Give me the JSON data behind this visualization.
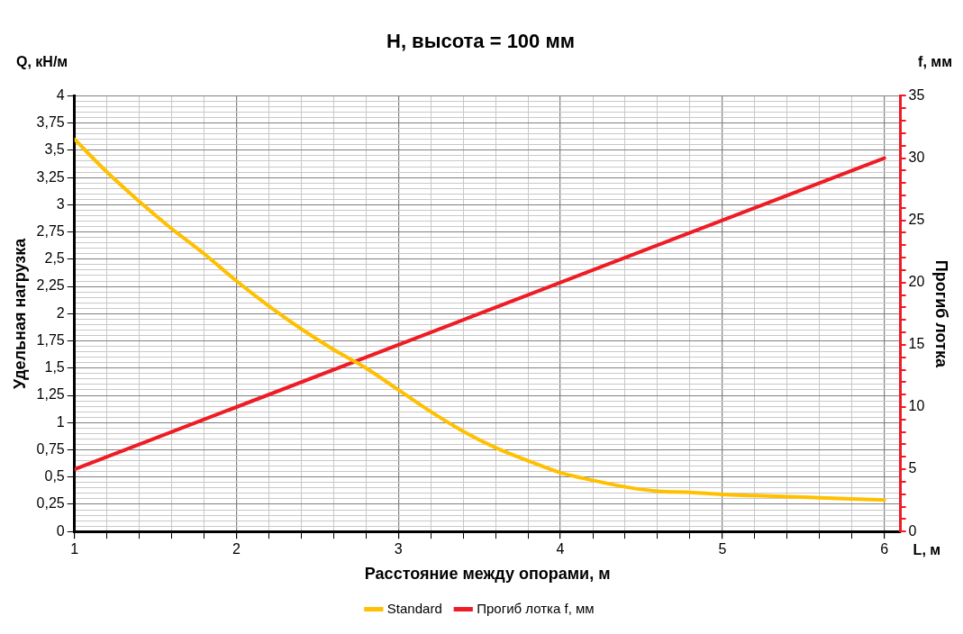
{
  "chart_data": {
    "type": "line",
    "title": "H, высота = 100 мм",
    "xlabel": "Расстояние между опорами, м",
    "ylabel": "Удельная нагрузка",
    "y2label": "Прогиб лотка",
    "annotations": [
      "Q, кН/м",
      "f, мм",
      "L, м"
    ],
    "x": [
      1,
      1.2,
      1.4,
      1.6,
      1.8,
      2,
      2.2,
      2.4,
      2.6,
      2.8,
      3,
      3.2,
      3.4,
      3.6,
      3.8,
      4,
      4.2,
      4.4,
      4.6,
      4.8,
      5,
      5.2,
      5.4,
      5.6,
      5.8,
      6
    ],
    "series": [
      {
        "name": "Standard",
        "color": "#ffc000",
        "values": [
          3.6,
          3.3,
          3.03,
          2.78,
          2.55,
          2.3,
          2.07,
          1.86,
          1.67,
          1.5,
          1.3,
          1.1,
          0.92,
          0.77,
          0.65,
          0.54,
          0.47,
          0.41,
          0.37,
          0.36,
          0.34,
          0.33,
          0.32,
          0.31,
          0.3,
          0.29
        ]
      },
      {
        "name": "Прогиб лотка f, мм",
        "color": "#ee1c25",
        "axis": "y2",
        "x": [
          1,
          6
        ],
        "values": [
          5,
          30
        ]
      }
    ],
    "xlim": [
      1,
      6.1
    ],
    "xticks": [
      1,
      {
        "value": 1.2,
        "label": null
      },
      {
        "value": 1.4,
        "label": null
      },
      {
        "value": 1.6,
        "label": null
      },
      {
        "value": 1.8,
        "label": null
      },
      2,
      {
        "value": 2.2,
        "label": null
      },
      {
        "value": 2.4,
        "label": null
      },
      {
        "value": 2.6,
        "label": null
      },
      {
        "value": 2.8,
        "label": null
      },
      3,
      {
        "value": 3.2,
        "label": null
      },
      {
        "value": 3.4,
        "label": null
      },
      {
        "value": 3.6,
        "label": null
      },
      {
        "value": 3.8,
        "label": null
      },
      4,
      {
        "value": 4.2,
        "label": null
      },
      {
        "value": 4.4,
        "label": null
      },
      {
        "value": 4.6,
        "label": null
      },
      {
        "value": 4.8,
        "label": null
      },
      5,
      {
        "value": 5.2,
        "label": null
      },
      {
        "value": 5.4,
        "label": null
      },
      {
        "value": 5.6,
        "label": null
      },
      {
        "value": 5.8,
        "label": null
      },
      6
    ],
    "ylim": [
      0,
      4
    ],
    "yticks": [
      0,
      {
        "value": 0.05,
        "label": null
      },
      {
        "value": 0.1,
        "label": null
      },
      {
        "value": 0.15,
        "label": null
      },
      {
        "value": 0.2,
        "label": null
      },
      {
        "value": 0.25,
        "label": "0,25"
      },
      {
        "value": 0.3,
        "label": null
      },
      {
        "value": 0.35,
        "label": null
      },
      {
        "value": 0.4,
        "label": null
      },
      {
        "value": 0.45,
        "label": null
      },
      {
        "value": 0.5,
        "label": "0,5"
      },
      {
        "value": 0.55,
        "label": null
      },
      {
        "value": 0.6,
        "label": null
      },
      {
        "value": 0.65,
        "label": null
      },
      {
        "value": 0.7,
        "label": null
      },
      {
        "value": 0.75,
        "label": "0,75"
      },
      {
        "value": 0.8,
        "label": null
      },
      {
        "value": 0.85,
        "label": null
      },
      {
        "value": 0.9,
        "label": null
      },
      {
        "value": 0.95,
        "label": null
      },
      1,
      {
        "value": 1.05,
        "label": null
      },
      {
        "value": 1.1,
        "label": null
      },
      {
        "value": 1.15,
        "label": null
      },
      {
        "value": 1.2,
        "label": null
      },
      {
        "value": 1.25,
        "label": "1,25"
      },
      {
        "value": 1.3,
        "label": null
      },
      {
        "value": 1.35,
        "label": null
      },
      {
        "value": 1.4,
        "label": null
      },
      {
        "value": 1.45,
        "label": null
      },
      {
        "value": 1.5,
        "label": "1,5"
      },
      {
        "value": 1.55,
        "label": null
      },
      {
        "value": 1.6,
        "label": null
      },
      {
        "value": 1.65,
        "label": null
      },
      {
        "value": 1.7,
        "label": null
      },
      {
        "value": 1.75,
        "label": "1,75"
      },
      {
        "value": 1.8,
        "label": null
      },
      {
        "value": 1.85,
        "label": null
      },
      {
        "value": 1.9,
        "label": null
      },
      {
        "value": 1.95,
        "label": null
      },
      2,
      {
        "value": 2.05,
        "label": null
      },
      {
        "value": 2.1,
        "label": null
      },
      {
        "value": 2.15,
        "label": null
      },
      {
        "value": 2.2,
        "label": null
      },
      {
        "value": 2.25,
        "label": "2,25"
      },
      {
        "value": 2.3,
        "label": null
      },
      {
        "value": 2.35,
        "label": null
      },
      {
        "value": 2.4,
        "label": null
      },
      {
        "value": 2.45,
        "label": null
      },
      {
        "value": 2.5,
        "label": "2,5"
      },
      {
        "value": 2.55,
        "label": null
      },
      {
        "value": 2.6,
        "label": null
      },
      {
        "value": 2.65,
        "label": null
      },
      {
        "value": 2.7,
        "label": null
      },
      {
        "value": 2.75,
        "label": "2,75"
      },
      {
        "value": 2.8,
        "label": null
      },
      {
        "value": 2.85,
        "label": null
      },
      {
        "value": 2.9,
        "label": null
      },
      {
        "value": 2.95,
        "label": null
      },
      3,
      {
        "value": 3.05,
        "label": null
      },
      {
        "value": 3.1,
        "label": null
      },
      {
        "value": 3.15,
        "label": null
      },
      {
        "value": 3.2,
        "label": null
      },
      {
        "value": 3.25,
        "label": "3,25"
      },
      {
        "value": 3.3,
        "label": null
      },
      {
        "value": 3.35,
        "label": null
      },
      {
        "value": 3.4,
        "label": null
      },
      {
        "value": 3.45,
        "label": null
      },
      {
        "value": 3.5,
        "label": "3,5"
      },
      {
        "value": 3.55,
        "label": null
      },
      {
        "value": 3.6,
        "label": null
      },
      {
        "value": 3.65,
        "label": null
      },
      {
        "value": 3.7,
        "label": null
      },
      {
        "value": 3.75,
        "label": "3,75"
      },
      {
        "value": 3.8,
        "label": null
      },
      {
        "value": 3.85,
        "label": null
      },
      {
        "value": 3.9,
        "label": null
      },
      {
        "value": 3.95,
        "label": null
      },
      4
    ],
    "y2lim": [
      0,
      35
    ],
    "y2ticks": [
      0,
      {
        "value": 1,
        "label": null
      },
      {
        "value": 2,
        "label": null
      },
      {
        "value": 3,
        "label": null
      },
      {
        "value": 4,
        "label": null
      },
      5,
      {
        "value": 6,
        "label": null
      },
      {
        "value": 7,
        "label": null
      },
      {
        "value": 8,
        "label": null
      },
      {
        "value": 9,
        "label": null
      },
      10,
      {
        "value": 11,
        "label": null
      },
      {
        "value": 12,
        "label": null
      },
      {
        "value": 13,
        "label": null
      },
      {
        "value": 14,
        "label": null
      },
      15,
      {
        "value": 16,
        "label": null
      },
      {
        "value": 17,
        "label": null
      },
      {
        "value": 18,
        "label": null
      },
      {
        "value": 19,
        "label": null
      },
      20,
      {
        "value": 21,
        "label": null
      },
      {
        "value": 22,
        "label": null
      },
      {
        "value": 23,
        "label": null
      },
      {
        "value": 24,
        "label": null
      },
      25,
      {
        "value": 26,
        "label": null
      },
      {
        "value": 27,
        "label": null
      },
      {
        "value": 28,
        "label": null
      },
      {
        "value": 29,
        "label": null
      },
      30,
      {
        "value": 31,
        "label": null
      },
      {
        "value": 32,
        "label": null
      },
      {
        "value": 33,
        "label": null
      },
      {
        "value": 34,
        "label": null
      },
      35
    ],
    "grid": true,
    "legend": "bottom",
    "marker": "none",
    "line_style": "solid"
  }
}
